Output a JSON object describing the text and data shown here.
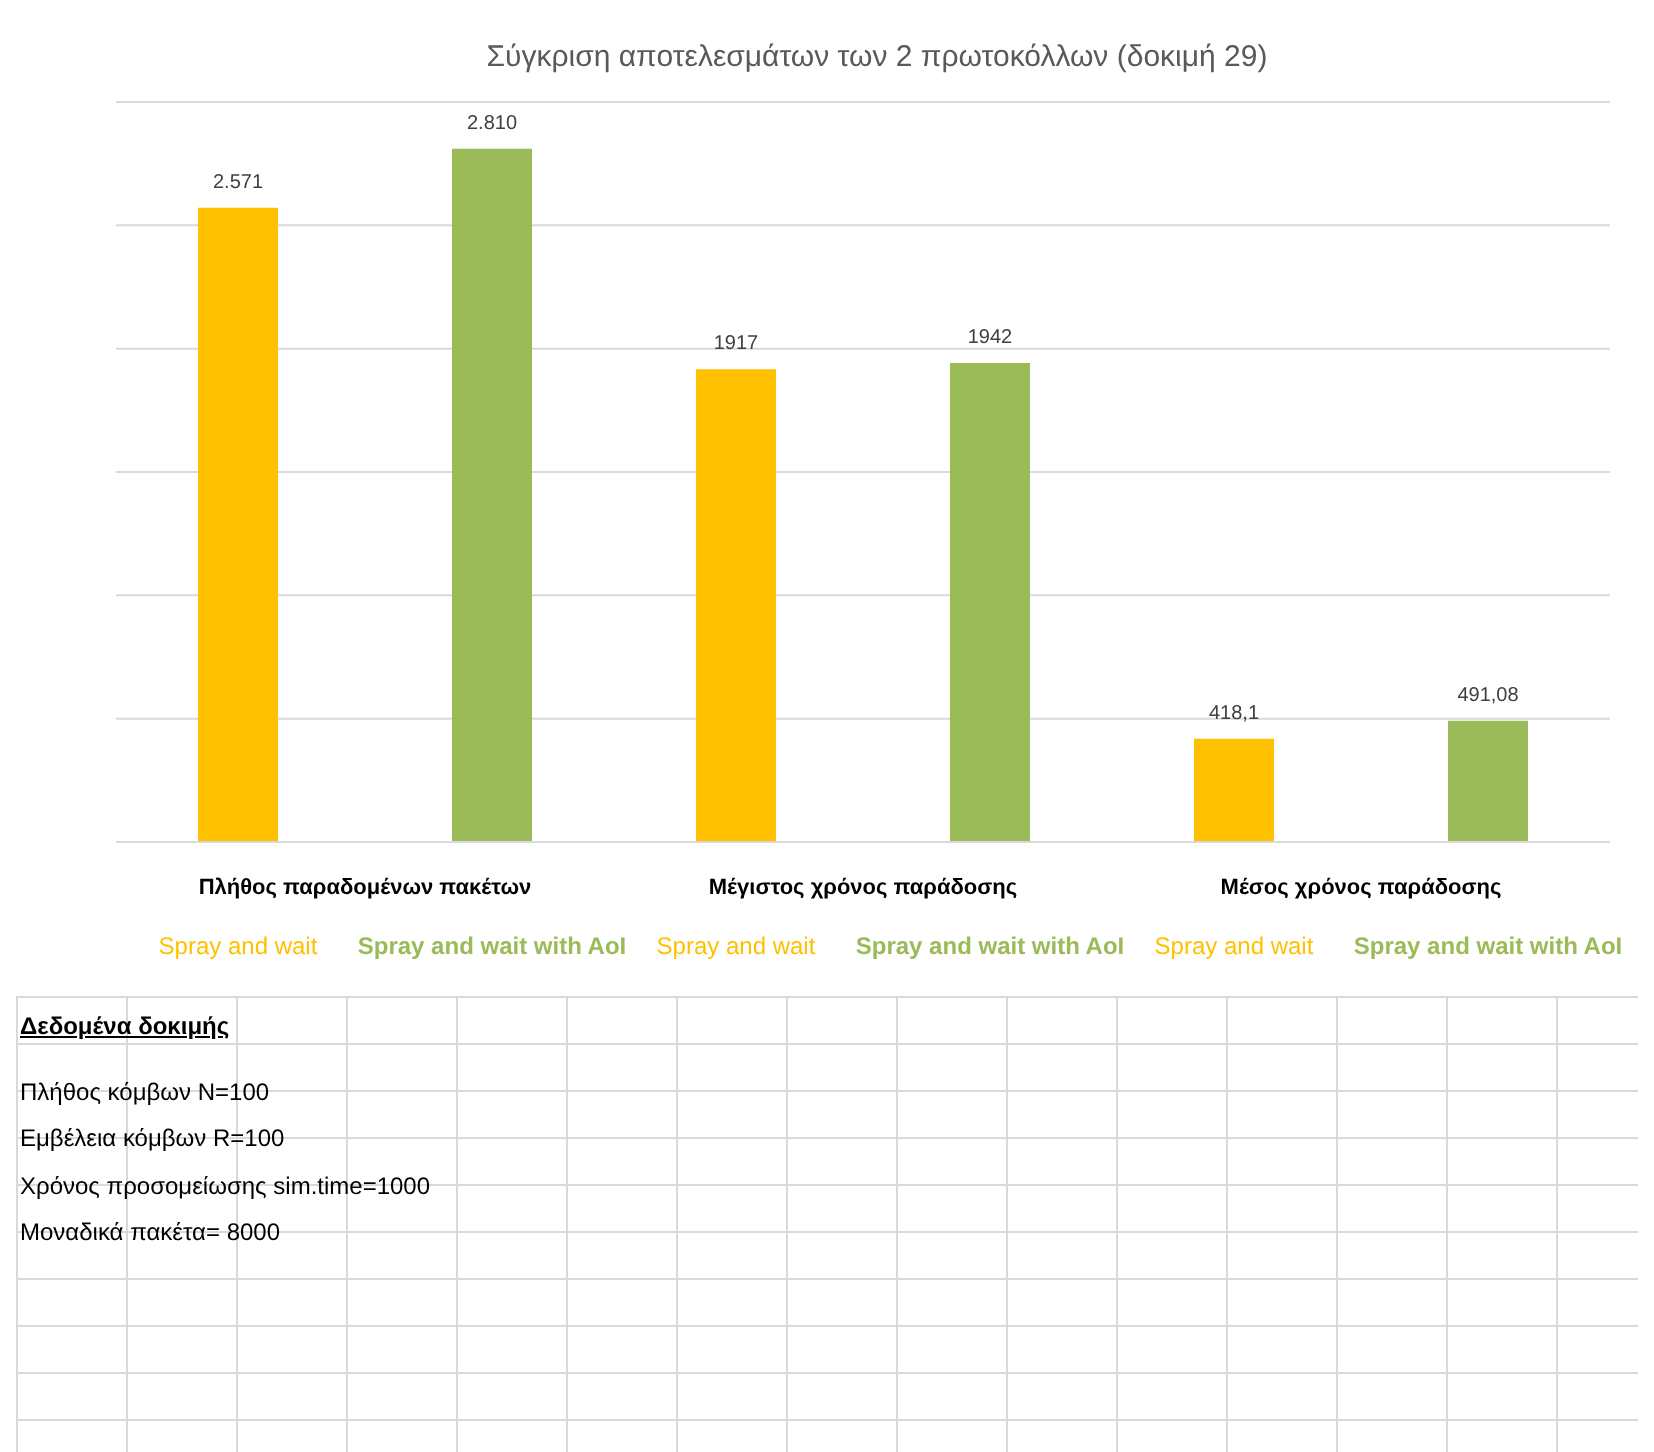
{
  "chart_data": {
    "type": "bar",
    "title": "Σύγκριση αποτελεσμάτων των 2 πρωτοκόλλων (δοκιμή 29)",
    "categories": [
      "Πλήθος παραδομένων πακέτων",
      "Μέγιστος χρόνος παράδοσης",
      "Μέσος χρόνος παράδοσης"
    ],
    "series": [
      {
        "name": "Spray and wait",
        "color": "#ffc000",
        "values": [
          2571,
          1917,
          418.1
        ],
        "value_labels": [
          "2.571",
          "1917",
          "418,1"
        ]
      },
      {
        "name": "Spray and wait with AoI",
        "color": "#9bbb59",
        "values": [
          2810,
          1942,
          491.08
        ],
        "value_labels": [
          "2.810",
          "1942",
          "491,08"
        ]
      }
    ],
    "ylim": [
      0,
      3000
    ],
    "yticks": [
      {
        "value": 0,
        "label": null
      },
      {
        "value": 500,
        "label": null
      },
      {
        "value": 1000,
        "label": null
      },
      {
        "value": 1500,
        "label": null
      },
      {
        "value": 2000,
        "label": null
      },
      {
        "value": 2500,
        "label": null
      },
      {
        "value": 3000,
        "label": null
      }
    ],
    "grid": "y",
    "tick_labels": "x",
    "legend": false,
    "annotations": [
      "Δεδομένα δοκιμής",
      "Πλήθος κόμβων N=100",
      "Εμβέλεια κόμβων R=100",
      "Χρόνος προσομείωσης sim.time=1000",
      "Μοναδικά πακέτα= 8000"
    ]
  }
}
